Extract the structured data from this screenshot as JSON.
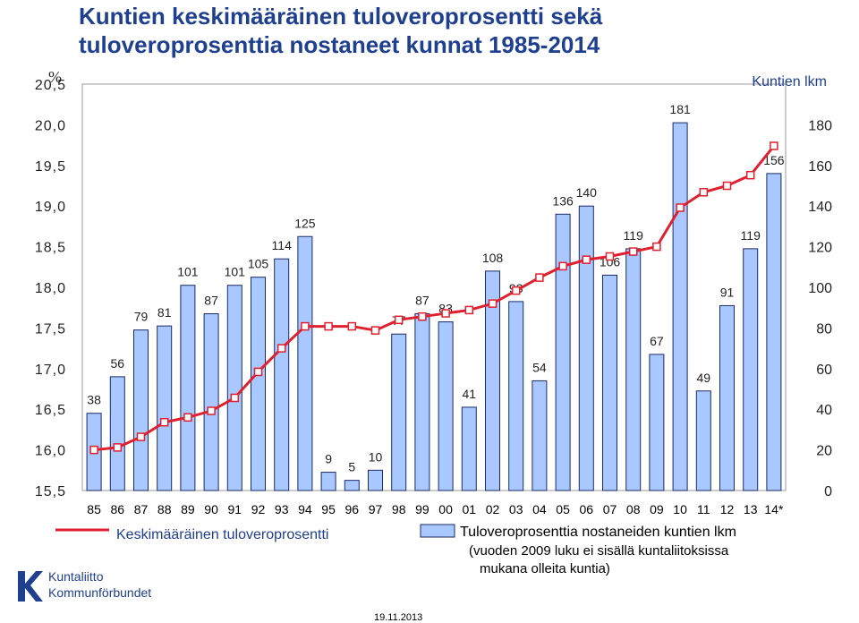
{
  "title_lines": [
    "Kuntien keskimääräinen tuloveroprosentti sekä",
    "tuloveroprosenttia nostaneet kunnat 1985-2014"
  ],
  "left_axis_unit": "%",
  "right_axis_label": "Kuntien lkm",
  "footer_date": "19.11.2013",
  "logo": {
    "line1": "Kuntaliitto",
    "line2": "Kommunförbundet"
  },
  "colors": {
    "line": "#e0202f",
    "bar_fill": "#a8c8ff",
    "bar_stroke": "#1a2a66",
    "title": "#1f3f8f",
    "axis_text": "#222222",
    "right_label": "#1f3f8f"
  },
  "chart_data": {
    "type": "bar+line",
    "categories": [
      "85",
      "86",
      "87",
      "88",
      "89",
      "90",
      "91",
      "92",
      "93",
      "94",
      "95",
      "96",
      "97",
      "98",
      "99",
      "00",
      "01",
      "02",
      "03",
      "04",
      "05",
      "06",
      "07",
      "08",
      "09",
      "10",
      "11",
      "12",
      "13",
      "14*"
    ],
    "series": [
      {
        "name": "Tuloveroprosenttia nostaneiden kuntien lkm",
        "type": "bar",
        "axis": "right",
        "values": [
          38,
          56,
          79,
          81,
          101,
          87,
          101,
          105,
          114,
          125,
          9,
          5,
          10,
          77,
          87,
          83,
          41,
          108,
          93,
          54,
          136,
          140,
          106,
          119,
          67,
          181,
          49,
          91,
          119,
          156
        ]
      },
      {
        "name": "Keskimääräinen tuloveroprosentti",
        "type": "line",
        "axis": "left",
        "values": [
          16.0,
          16.03,
          16.16,
          16.34,
          16.4,
          16.48,
          16.64,
          16.96,
          17.25,
          17.52,
          17.52,
          17.52,
          17.47,
          17.6,
          17.64,
          17.68,
          17.72,
          17.8,
          17.96,
          18.12,
          18.26,
          18.34,
          18.38,
          18.44,
          18.5,
          18.98,
          19.17,
          19.25,
          19.38,
          19.74
        ]
      }
    ],
    "left_axis": {
      "ticks": [
        "15,5",
        "16,0",
        "16,5",
        "17,0",
        "17,5",
        "18,0",
        "18,5",
        "19,0",
        "19,5",
        "20,0",
        "20,5"
      ],
      "range": [
        15.5,
        20.5
      ]
    },
    "right_axis": {
      "ticks": [
        "0",
        "20",
        "40",
        "60",
        "80",
        "100",
        "120",
        "140",
        "160",
        "180"
      ],
      "range": [
        0,
        200
      ]
    },
    "grid": false,
    "legend": [
      {
        "kind": "line",
        "label": "Keskimääräinen tuloveroprosentti",
        "position": "bottom-left"
      },
      {
        "kind": "bar",
        "lines": [
          "Tuloveroprosenttia nostaneiden kuntien lkm",
          "(vuoden 2009 luku ei sisällä kuntaliitoksissa",
          "mukana olleita kuntia)"
        ],
        "position": "bottom-right"
      }
    ]
  }
}
